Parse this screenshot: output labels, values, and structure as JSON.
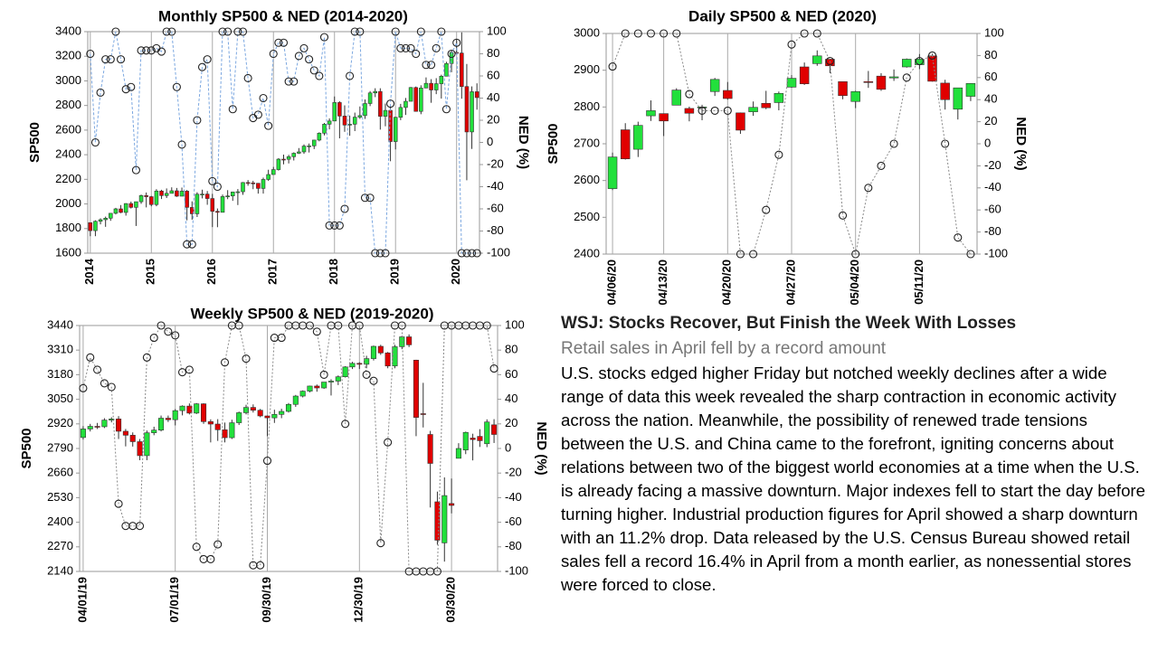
{
  "chart_data": [
    {
      "type": "candlestick",
      "title": "Monthly SP500 & NED (2014-2020)",
      "ylabel": "SP500",
      "y2label": "NED (%)",
      "categories": [
        "2014",
        null,
        null,
        null,
        null,
        null,
        null,
        null,
        null,
        null,
        null,
        null,
        "2015",
        null,
        null,
        null,
        null,
        null,
        null,
        null,
        null,
        null,
        null,
        null,
        "2016",
        null,
        null,
        null,
        null,
        null,
        null,
        null,
        null,
        null,
        null,
        null,
        "2017",
        null,
        null,
        null,
        null,
        null,
        null,
        null,
        null,
        null,
        null,
        null,
        "2018",
        null,
        null,
        null,
        null,
        null,
        null,
        null,
        null,
        null,
        null,
        null,
        "2019",
        null,
        null,
        null,
        null,
        null,
        null,
        null,
        null,
        null,
        null,
        null,
        "2020",
        null,
        null,
        null,
        null
      ],
      "ylim": [
        1600,
        3400
      ],
      "yticks": [
        1600,
        1800,
        2000,
        2200,
        2400,
        2600,
        2800,
        3000,
        3200,
        3400
      ],
      "y2lim": [
        -100,
        100
      ],
      "y2ticks": [
        -100,
        -80,
        -60,
        -40,
        -20,
        0,
        20,
        40,
        60,
        80,
        100
      ],
      "vgrid": true,
      "up_color": "#22e03c",
      "down_color": "#e00000",
      "ohlc": {
        "open": [
          1848,
          1783,
          1859,
          1872,
          1884,
          1924,
          1960,
          1931,
          2003,
          1972,
          2018,
          2068,
          2059,
          1995,
          2105,
          2068,
          2086,
          2107,
          2063,
          2104,
          1972,
          1920,
          2079,
          2080,
          2044,
          1940,
          1932,
          2060,
          2065,
          2097,
          2099,
          2174,
          2171,
          2168,
          2126,
          2199,
          2239,
          2279,
          2364,
          2363,
          2384,
          2412,
          2423,
          2470,
          2472,
          2519,
          2575,
          2648,
          2674,
          2824,
          2714,
          2641,
          2648,
          2705,
          2718,
          2816,
          2902,
          2914,
          2712,
          2760,
          2507,
          2704,
          2784,
          2834,
          2946,
          2752,
          2942,
          2980,
          2926,
          2977,
          3038,
          3141,
          3231,
          3226,
          2954,
          2585,
          2912
        ],
        "high": [
          1850,
          1867,
          1883,
          1897,
          1925,
          1968,
          1991,
          2006,
          2019,
          2019,
          2076,
          2093,
          2065,
          2120,
          2115,
          2126,
          2135,
          2130,
          2133,
          2113,
          2021,
          2095,
          2116,
          2105,
          2082,
          1963,
          2076,
          2112,
          2100,
          2121,
          2178,
          2194,
          2188,
          2169,
          2214,
          2278,
          2301,
          2372,
          2401,
          2399,
          2419,
          2454,
          2484,
          2491,
          2520,
          2582,
          2658,
          2695,
          2873,
          2835,
          2801,
          2718,
          2742,
          2792,
          2849,
          2917,
          2940,
          2940,
          2816,
          2800,
          2708,
          2813,
          2861,
          2950,
          2954,
          2964,
          3028,
          3014,
          3022,
          3050,
          3155,
          3248,
          3338,
          3394,
          3137,
          2955,
          2980
        ],
        "low": [
          1738,
          1738,
          1834,
          1814,
          1863,
          1915,
          1925,
          1905,
          1963,
          1821,
          2001,
          1972,
          1981,
          1981,
          2040,
          2048,
          2085,
          2057,
          2063,
          1867,
          1872,
          1894,
          2045,
          1993,
          1812,
          1811,
          1931,
          2039,
          2025,
          1991,
          2074,
          2148,
          2120,
          2084,
          2084,
          2187,
          2245,
          2271,
          2322,
          2329,
          2353,
          2406,
          2407,
          2418,
          2446,
          2509,
          2557,
          2606,
          2683,
          2533,
          2586,
          2554,
          2592,
          2691,
          2691,
          2795,
          2868,
          2604,
          2631,
          2347,
          2443,
          2681,
          2723,
          2848,
          2750,
          2729,
          2943,
          2822,
          2892,
          2856,
          3050,
          3070,
          3215,
          2855,
          2192,
          2447,
          2766
        ],
        "close": [
          1783,
          1859,
          1872,
          1884,
          1924,
          1960,
          1931,
          2003,
          1972,
          2018,
          2068,
          2059,
          1995,
          2105,
          2068,
          2086,
          2107,
          2063,
          2104,
          1972,
          1920,
          2079,
          2080,
          2044,
          1940,
          1932,
          2060,
          2065,
          2097,
          2099,
          2174,
          2171,
          2168,
          2126,
          2199,
          2239,
          2279,
          2364,
          2363,
          2384,
          2412,
          2423,
          2470,
          2472,
          2519,
          2575,
          2648,
          2674,
          2824,
          2714,
          2641,
          2648,
          2705,
          2718,
          2816,
          2902,
          2914,
          2712,
          2760,
          2507,
          2704,
          2784,
          2834,
          2946,
          2752,
          2942,
          2980,
          2926,
          2977,
          3038,
          3141,
          3231,
          3226,
          2954,
          2585,
          2912,
          2864
        ]
      },
      "line": {
        "axis": "y2",
        "color": "#7ba7e0",
        "dash": "3 2",
        "values": [
          80,
          0,
          45,
          75,
          75,
          100,
          75,
          48,
          50,
          -25,
          83,
          83,
          83,
          85,
          82,
          100,
          100,
          50,
          -2,
          -92,
          -92,
          20,
          68,
          75,
          -35,
          -40,
          100,
          100,
          30,
          100,
          100,
          58,
          22,
          25,
          40,
          15,
          80,
          90,
          90,
          55,
          55,
          78,
          85,
          75,
          65,
          60,
          95,
          -75,
          -75,
          -75,
          -60,
          60,
          100,
          100,
          -50,
          -50,
          -100,
          -100,
          -100,
          35,
          100,
          85,
          85,
          85,
          80,
          100,
          70,
          70,
          85,
          100,
          30,
          80,
          90,
          -100,
          -100,
          -100,
          -100
        ]
      }
    },
    {
      "type": "candlestick",
      "title": "Daily SP500 & NED (2020)",
      "ylabel": "SP500",
      "y2label": "NED (%)",
      "categories": [
        "04/06/20",
        null,
        null,
        null,
        "04/13/20",
        null,
        null,
        null,
        null,
        "04/20/20",
        null,
        null,
        null,
        null,
        "04/27/20",
        null,
        null,
        null,
        null,
        "05/04/20",
        null,
        null,
        null,
        null,
        "05/11/20",
        null,
        null,
        null,
        null
      ],
      "ylim": [
        2400,
        3000
      ],
      "yticks": [
        2400,
        2500,
        2600,
        2700,
        2800,
        2900,
        3000
      ],
      "y2lim": [
        -100,
        100
      ],
      "y2ticks": [
        -100,
        -80,
        -60,
        -40,
        -20,
        0,
        20,
        40,
        60,
        80,
        100
      ],
      "vgrid": true,
      "up_color": "#22e03c",
      "down_color": "#e00000",
      "ohlc": {
        "open": [
          2578,
          2738,
          2685,
          2776,
          2782,
          2805,
          2796,
          2799,
          2842,
          2845,
          2784,
          2787,
          2810,
          2812,
          2854,
          2909,
          2918,
          2930,
          2869,
          2815,
          2869,
          2884,
          2879,
          2909,
          2915,
          2939,
          2865,
          2794,
          2829
        ],
        "high": [
          2676,
          2756,
          2760,
          2818,
          2782,
          2851,
          2801,
          2806,
          2879,
          2868,
          2785,
          2815,
          2844,
          2842,
          2887,
          2921,
          2954,
          2930,
          2869,
          2844,
          2898,
          2892,
          2902,
          2932,
          2944,
          2945,
          2874,
          2852,
          2865
        ],
        "low": [
          2574,
          2657,
          2664,
          2762,
          2721,
          2805,
          2761,
          2764,
          2830,
          2820,
          2727,
          2776,
          2794,
          2791,
          2852,
          2860,
          2912,
          2892,
          2821,
          2797,
          2852,
          2844,
          2871,
          2907,
          2903,
          2869,
          2793,
          2766,
          2816
        ],
        "close": [
          2664,
          2659,
          2750,
          2790,
          2762,
          2846,
          2783,
          2800,
          2875,
          2823,
          2737,
          2799,
          2798,
          2837,
          2878,
          2863,
          2939,
          2912,
          2831,
          2842,
          2868,
          2848,
          2882,
          2930,
          2930,
          2870,
          2820,
          2852,
          2864
        ]
      },
      "line": {
        "axis": "y2",
        "color": "#888888",
        "dash": "2 2",
        "values": [
          70,
          100,
          100,
          100,
          100,
          100,
          45,
          30,
          30,
          30,
          -100,
          -100,
          -60,
          -10,
          90,
          100,
          100,
          75,
          -65,
          -100,
          -40,
          -20,
          0,
          60,
          75,
          80,
          0,
          -85,
          -100
        ]
      }
    },
    {
      "type": "candlestick",
      "title": "Weekly SP500 & NED (2019-2020)",
      "ylabel": "SP500",
      "y2label": "NED (%)",
      "categories": [
        "04/01/19",
        null,
        null,
        null,
        null,
        null,
        null,
        null,
        null,
        null,
        null,
        null,
        null,
        "07/01/19",
        null,
        null,
        null,
        null,
        null,
        null,
        null,
        null,
        null,
        null,
        null,
        null,
        "09/30/19",
        null,
        null,
        null,
        null,
        null,
        null,
        null,
        null,
        null,
        null,
        null,
        null,
        "12/30/19",
        null,
        null,
        null,
        null,
        null,
        null,
        null,
        null,
        null,
        null,
        null,
        null,
        "03/30/20",
        null,
        null,
        null,
        null,
        null,
        null
      ],
      "ylim": [
        2140,
        3440
      ],
      "yticks": [
        2140,
        2270,
        2400,
        2530,
        2660,
        2790,
        2920,
        3050,
        3180,
        3310,
        3440
      ],
      "y2lim": [
        -100,
        100
      ],
      "y2ticks": [
        -100,
        -80,
        -60,
        -40,
        -20,
        0,
        20,
        40,
        60,
        80,
        100
      ],
      "vgrid": true,
      "up_color": "#22e03c",
      "down_color": "#e00000",
      "ohlc": {
        "open": [
          2848,
          2893,
          2907,
          2905,
          2940,
          2946,
          2881,
          2860,
          2826,
          2752,
          2873,
          2887,
          2950,
          2942,
          2990,
          3014,
          2977,
          3026,
          2932,
          2919,
          2889,
          2847,
          2926,
          2979,
          3007,
          2992,
          2962,
          2952,
          2970,
          2986,
          3023,
          3067,
          3093,
          3120,
          3110,
          3141,
          3146,
          3169,
          3221,
          3240,
          3235,
          3265,
          3330,
          3295,
          3226,
          3328,
          3380,
          3257,
          2974,
          2864,
          2508,
          2291,
          2499,
          2738,
          2782,
          2845,
          2854,
          2815,
          2915
        ],
        "high": [
          2908,
          2920,
          2925,
          2950,
          2955,
          2961,
          2893,
          2875,
          2840,
          2885,
          2905,
          2964,
          2964,
          2998,
          3018,
          3028,
          3030,
          3029,
          2944,
          2945,
          2927,
          2942,
          2985,
          3021,
          3023,
          2999,
          2964,
          2995,
          3000,
          3030,
          3073,
          3097,
          3122,
          3128,
          3141,
          3156,
          3176,
          3225,
          3248,
          3246,
          3280,
          3334,
          3338,
          3300,
          3338,
          3386,
          3393,
          3259,
          3137,
          2883,
          2562,
          2637,
          2631,
          2818,
          2879,
          2868,
          2892,
          2944,
          2945
        ],
        "low": [
          2837,
          2880,
          2893,
          2898,
          2928,
          2840,
          2801,
          2800,
          2728,
          2728,
          2860,
          2880,
          2930,
          2912,
          2965,
          2970,
          2972,
          2920,
          2822,
          2830,
          2822,
          2840,
          2914,
          2970,
          2980,
          2955,
          2855,
          2925,
          2950,
          2980,
          3010,
          3060,
          3087,
          3090,
          3105,
          3070,
          3125,
          3165,
          3210,
          3210,
          3214,
          3255,
          3285,
          3214,
          3214,
          3315,
          3326,
          2855,
          2901,
          2478,
          2281,
          2192,
          2447,
          2738,
          2760,
          2727,
          2798,
          2797,
          2819
        ],
        "close": [
          2893,
          2907,
          2905,
          2940,
          2946,
          2881,
          2860,
          2826,
          2752,
          2873,
          2887,
          2950,
          2942,
          2990,
          3014,
          2977,
          3026,
          2932,
          2919,
          2889,
          2847,
          2926,
          2979,
          3007,
          2992,
          2962,
          2952,
          2970,
          2986,
          3023,
          3067,
          3093,
          3120,
          3110,
          3141,
          3146,
          3169,
          3221,
          3240,
          3235,
          3265,
          3330,
          3295,
          3226,
          3328,
          3380,
          3338,
          2954,
          2972,
          2711,
          2305,
          2541,
          2489,
          2790,
          2875,
          2837,
          2831,
          2930,
          2864
        ]
      },
      "line": {
        "axis": "y2",
        "color": "#888888",
        "dash": "2 2",
        "values": [
          49,
          74,
          64,
          53,
          50,
          -45,
          -63,
          -63,
          -63,
          74,
          90,
          100,
          95,
          92,
          62,
          64,
          -80,
          -90,
          -90,
          -78,
          70,
          100,
          100,
          73,
          -95,
          -95,
          -10,
          90,
          90,
          100,
          100,
          100,
          100,
          95,
          60,
          100,
          100,
          20,
          100,
          100,
          60,
          55,
          -77,
          5,
          100,
          100,
          -100,
          -100,
          -100,
          -100,
          -100,
          100,
          100,
          100,
          100,
          100,
          100,
          100,
          65
        ]
      }
    }
  ],
  "article": {
    "title": "WSJ: Stocks Recover, But Finish the Week With Losses",
    "subtitle": "Retail sales in April fell by a record amount",
    "body": "U.S. stocks edged higher Friday but notched weekly declines after a wide range of data this week revealed the sharp contraction in economic activity across the nation. Meanwhile, the possibility of renewed trade tensions between the U.S. and China came to the forefront, igniting concerns about relations between two of the biggest world economies at a time when the U.S. is already facing a massive downturn. Major indexes fell to start the day before turning higher. Industrial production figures for April showed a sharp downturn with an 11.2% drop. Data released by the U.S. Census Bureau showed retail sales fell a record 16.4% in April from a month earlier, as nonessential stores were forced to close."
  }
}
